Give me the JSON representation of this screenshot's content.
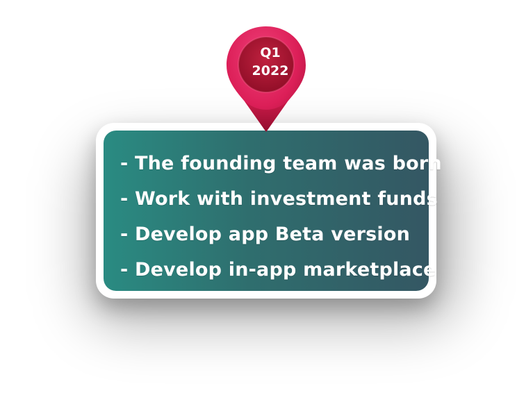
{
  "marker": {
    "quarter": "Q1",
    "year": "2022"
  },
  "milestones": [
    "- The founding team was born",
    "- Work with investment funds",
    "- Develop app Beta version",
    "- Develop in-app marketplace"
  ],
  "colors": {
    "pin_outer": "#e0245e",
    "pin_inner": "#a3122e",
    "card_left": "#2a8b82",
    "card_right": "#345763",
    "card_border": "#ffffff",
    "text": "#ffffff"
  },
  "icons": {
    "marker": "map-pin-icon"
  }
}
